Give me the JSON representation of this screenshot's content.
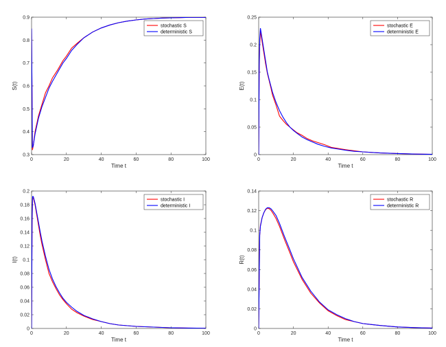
{
  "chart_data": [
    {
      "type": "line",
      "xlabel": "Time t",
      "ylabel": "S(t)",
      "xlim": [
        0,
        100
      ],
      "ylim": [
        0.3,
        0.9
      ],
      "xticks": [
        "0",
        "20",
        "40",
        "60",
        "80",
        "100"
      ],
      "yticks": [
        "0.3",
        "0.4",
        "0.5",
        "0.6",
        "0.7",
        "0.8",
        "0.9"
      ],
      "legend_position": "top-right",
      "series": [
        {
          "name": "stochastic S",
          "color": "#ff0000",
          "x": [
            0,
            0.5,
            1,
            2,
            4,
            6,
            8,
            10,
            12,
            15,
            18,
            20,
            23,
            26,
            30,
            35,
            40,
            45,
            50,
            55,
            60,
            65,
            70,
            75,
            80,
            85,
            90,
            95,
            100
          ],
          "y": [
            0.85,
            0.32,
            0.34,
            0.4,
            0.47,
            0.52,
            0.57,
            0.6,
            0.635,
            0.67,
            0.71,
            0.73,
            0.765,
            0.785,
            0.81,
            0.835,
            0.853,
            0.866,
            0.876,
            0.883,
            0.888,
            0.892,
            0.894,
            0.896,
            0.897,
            0.898,
            0.899,
            0.899,
            0.899
          ]
        },
        {
          "name": "deterministic S",
          "color": "#0000ff",
          "x": [
            0,
            0.5,
            1,
            2,
            4,
            6,
            8,
            10,
            12,
            15,
            18,
            20,
            23,
            26,
            30,
            35,
            40,
            45,
            50,
            55,
            60,
            65,
            70,
            75,
            80,
            85,
            90,
            95,
            100
          ],
          "y": [
            0.85,
            0.33,
            0.34,
            0.39,
            0.46,
            0.51,
            0.55,
            0.59,
            0.62,
            0.66,
            0.7,
            0.72,
            0.755,
            0.78,
            0.81,
            0.835,
            0.853,
            0.866,
            0.876,
            0.883,
            0.888,
            0.892,
            0.894,
            0.896,
            0.897,
            0.898,
            0.899,
            0.899,
            0.899
          ]
        }
      ]
    },
    {
      "type": "line",
      "xlabel": "Time t",
      "ylabel": "E(t)",
      "xlim": [
        0,
        100
      ],
      "ylim": [
        0,
        0.25
      ],
      "xticks": [
        "0",
        "20",
        "40",
        "60",
        "80",
        "100"
      ],
      "yticks": [
        "0",
        "0.05",
        "0.1",
        "0.15",
        "0.2",
        "0.25"
      ],
      "legend_position": "top-right",
      "series": [
        {
          "name": "stochastic E",
          "color": "#ff0000",
          "x": [
            0,
            0.3,
            0.6,
            1,
            1.5,
            2,
            3,
            4,
            5,
            6,
            7,
            8,
            10,
            12,
            14,
            16,
            18,
            20,
            22,
            25,
            28,
            31,
            34,
            38,
            42,
            46,
            50,
            55,
            60,
            70,
            80,
            90,
            100
          ],
          "y": [
            0,
            0.15,
            0.2,
            0.225,
            0.215,
            0.205,
            0.185,
            0.165,
            0.148,
            0.135,
            0.122,
            0.108,
            0.09,
            0.07,
            0.062,
            0.055,
            0.05,
            0.045,
            0.04,
            0.035,
            0.029,
            0.025,
            0.022,
            0.018,
            0.013,
            0.011,
            0.009,
            0.007,
            0.005,
            0.003,
            0.002,
            0.001,
            0.0005
          ]
        },
        {
          "name": "deterministic E",
          "color": "#0000ff",
          "x": [
            0,
            0.3,
            0.6,
            1,
            1.5,
            2,
            3,
            4,
            5,
            6,
            7,
            8,
            10,
            12,
            14,
            16,
            18,
            20,
            22,
            25,
            28,
            31,
            34,
            38,
            42,
            46,
            50,
            55,
            60,
            70,
            80,
            90,
            100
          ],
          "y": [
            0,
            0.16,
            0.21,
            0.23,
            0.22,
            0.21,
            0.19,
            0.17,
            0.15,
            0.137,
            0.125,
            0.113,
            0.095,
            0.08,
            0.068,
            0.058,
            0.05,
            0.044,
            0.039,
            0.032,
            0.027,
            0.023,
            0.019,
            0.015,
            0.012,
            0.01,
            0.008,
            0.006,
            0.005,
            0.003,
            0.002,
            0.001,
            0.0005
          ]
        }
      ]
    },
    {
      "type": "line",
      "xlabel": "Time t",
      "ylabel": "I(t)",
      "xlim": [
        0,
        100
      ],
      "ylim": [
        0,
        0.2
      ],
      "xticks": [
        "0",
        "20",
        "40",
        "60",
        "80",
        "100"
      ],
      "yticks": [
        "0",
        "0.02",
        "0.04",
        "0.06",
        "0.08",
        "0.1",
        "0.12",
        "0.14",
        "0.16",
        "0.18",
        "0.2"
      ],
      "legend_position": "top-right",
      "series": [
        {
          "name": "stochastic I",
          "color": "#ff0000",
          "x": [
            0,
            0.3,
            0.6,
            1,
            2,
            3,
            4,
            5,
            6,
            8,
            10,
            12,
            14,
            16,
            18,
            20,
            23,
            26,
            30,
            35,
            40,
            45,
            50,
            55,
            60,
            70,
            80,
            90,
            100
          ],
          "y": [
            0,
            0.15,
            0.19,
            0.19,
            0.18,
            0.165,
            0.15,
            0.135,
            0.122,
            0.1,
            0.08,
            0.068,
            0.058,
            0.049,
            0.042,
            0.036,
            0.028,
            0.023,
            0.018,
            0.013,
            0.01,
            0.007,
            0.005,
            0.004,
            0.003,
            0.002,
            0.001,
            0.0006,
            0.0003
          ]
        },
        {
          "name": "deterministic I",
          "color": "#0000ff",
          "x": [
            0,
            0.3,
            0.6,
            1,
            2,
            3,
            4,
            5,
            6,
            8,
            10,
            12,
            14,
            16,
            18,
            20,
            23,
            26,
            30,
            35,
            40,
            45,
            50,
            55,
            60,
            70,
            80,
            90,
            100
          ],
          "y": [
            0,
            0.16,
            0.192,
            0.192,
            0.182,
            0.168,
            0.154,
            0.14,
            0.127,
            0.105,
            0.086,
            0.072,
            0.061,
            0.052,
            0.044,
            0.038,
            0.031,
            0.025,
            0.019,
            0.014,
            0.01,
            0.007,
            0.005,
            0.004,
            0.003,
            0.002,
            0.001,
            0.0006,
            0.0003
          ]
        }
      ]
    },
    {
      "type": "line",
      "xlabel": "Time t",
      "ylabel": "R(t)",
      "xlim": [
        0,
        100
      ],
      "ylim": [
        0,
        0.14
      ],
      "xticks": [
        "0",
        "20",
        "40",
        "60",
        "80",
        "100"
      ],
      "yticks": [
        "0",
        "0.02",
        "0.04",
        "0.06",
        "0.08",
        "0.1",
        "0.12",
        "0.14"
      ],
      "legend_position": "top-right",
      "series": [
        {
          "name": "stochastic R",
          "color": "#ff0000",
          "x": [
            0,
            0.3,
            0.6,
            1,
            2,
            3,
            4,
            5,
            6,
            7,
            8,
            10,
            12,
            15,
            18,
            20,
            25,
            30,
            35,
            40,
            45,
            50,
            55,
            60,
            65,
            70,
            80,
            90,
            100
          ],
          "y": [
            0,
            0.05,
            0.095,
            0.105,
            0.113,
            0.118,
            0.121,
            0.1225,
            0.122,
            0.1205,
            0.118,
            0.112,
            0.104,
            0.09,
            0.077,
            0.068,
            0.05,
            0.036,
            0.026,
            0.018,
            0.013,
            0.009,
            0.007,
            0.005,
            0.004,
            0.003,
            0.0015,
            0.0008,
            0.0004
          ]
        },
        {
          "name": "deterministic R",
          "color": "#0000ff",
          "x": [
            0,
            0.3,
            0.6,
            1,
            2,
            3,
            4,
            5,
            6,
            7,
            8,
            10,
            12,
            15,
            18,
            20,
            25,
            30,
            35,
            40,
            45,
            50,
            55,
            60,
            65,
            70,
            80,
            90,
            100
          ],
          "y": [
            0,
            0.05,
            0.095,
            0.104,
            0.113,
            0.118,
            0.1215,
            0.123,
            0.123,
            0.122,
            0.12,
            0.115,
            0.107,
            0.093,
            0.08,
            0.071,
            0.052,
            0.038,
            0.027,
            0.019,
            0.014,
            0.01,
            0.007,
            0.005,
            0.004,
            0.003,
            0.0015,
            0.0008,
            0.0004
          ]
        }
      ]
    }
  ]
}
